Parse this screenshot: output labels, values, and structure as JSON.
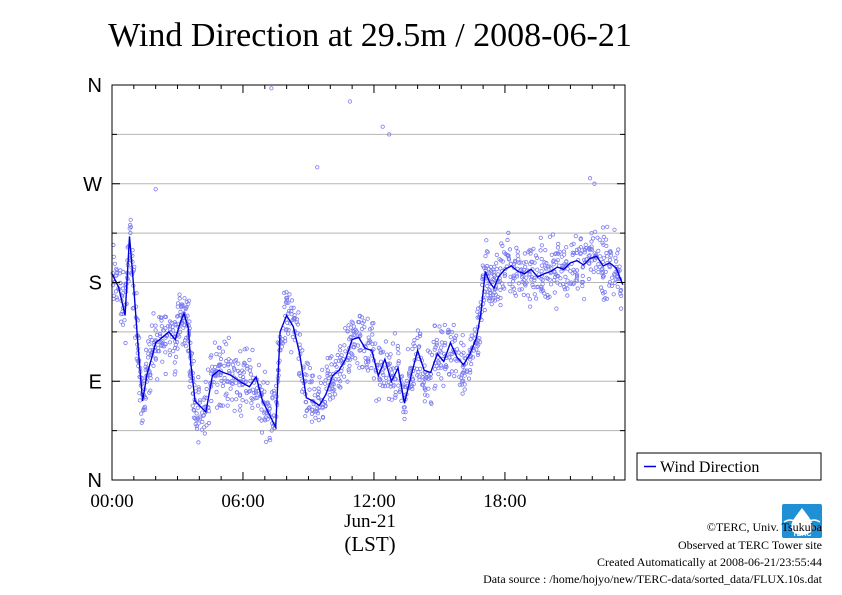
{
  "chart_data": {
    "type": "scatter",
    "title": "Wind Direction at 29.5m / 2008-06-21",
    "xlabel": "(LST)",
    "date_label": "Jun-21",
    "x_unit": "hours (LST)",
    "xlim": [
      0,
      23.5
    ],
    "x_ticks": [
      {
        "value": 0,
        "label": "00:00"
      },
      {
        "value": 6,
        "label": "06:00"
      },
      {
        "value": 12,
        "label": "12:00"
      },
      {
        "value": 18,
        "label": "18:00"
      }
    ],
    "y_unit": "degrees",
    "ylim": [
      0,
      360
    ],
    "y_ticks": [
      {
        "value": 0,
        "label": "N"
      },
      {
        "value": 90,
        "label": "E"
      },
      {
        "value": 180,
        "label": "S"
      },
      {
        "value": 270,
        "label": "W"
      },
      {
        "value": 360,
        "label": "N"
      }
    ],
    "y_minor_gridlines": [
      45,
      135,
      225,
      315
    ],
    "grid": true,
    "legend": {
      "position": "bottom-right, outside plot",
      "entries": [
        "Wind Direction"
      ]
    },
    "series": [
      {
        "name": "Wind Direction",
        "style": "line with scatter of 10-second samples",
        "color": "#0000dd",
        "scatter_color": "#7b7bf0",
        "x": [
          0.0,
          0.3,
          0.6,
          0.8,
          1.0,
          1.2,
          1.4,
          1.6,
          1.8,
          2.0,
          2.3,
          2.6,
          2.9,
          3.1,
          3.3,
          3.5,
          3.6,
          3.8,
          4.0,
          4.3,
          4.6,
          4.9,
          5.1,
          5.4,
          5.7,
          6.0,
          6.3,
          6.6,
          6.9,
          7.2,
          7.5,
          7.7,
          8.0,
          8.3,
          8.6,
          8.9,
          9.2,
          9.5,
          9.8,
          10.1,
          10.4,
          10.7,
          11.0,
          11.3,
          11.6,
          11.9,
          12.2,
          12.5,
          12.8,
          13.1,
          13.4,
          13.7,
          14.0,
          14.3,
          14.6,
          14.9,
          15.2,
          15.5,
          15.8,
          16.1,
          16.4,
          16.7,
          16.9,
          17.1,
          17.3,
          17.5,
          17.7,
          18.0,
          18.3,
          18.6,
          18.9,
          19.2,
          19.5,
          19.8,
          20.1,
          20.4,
          20.7,
          21.0,
          21.3,
          21.6,
          21.9,
          22.2,
          22.5,
          22.8,
          23.1,
          23.4
        ],
        "y": [
          188,
          176,
          150,
          222,
          175,
          120,
          72,
          96,
          110,
          125,
          130,
          135,
          128,
          142,
          152,
          138,
          108,
          72,
          68,
          62,
          95,
          100,
          98,
          96,
          92,
          88,
          85,
          94,
          72,
          60,
          48,
          135,
          150,
          140,
          115,
          75,
          72,
          68,
          78,
          95,
          100,
          110,
          128,
          130,
          120,
          118,
          95,
          110,
          90,
          102,
          70,
          95,
          118,
          100,
          98,
          115,
          108,
          125,
          112,
          105,
          115,
          130,
          152,
          190,
          180,
          175,
          185,
          192,
          195,
          190,
          188,
          192,
          185,
          188,
          190,
          194,
          192,
          198,
          200,
          196,
          202,
          204,
          195,
          198,
          193,
          178
        ],
        "samples_per_segment": 18,
        "sample_spread_deg": 22
      }
    ],
    "outliers": [
      {
        "x": 2.0,
        "y": 265
      },
      {
        "x": 7.3,
        "y": 357
      },
      {
        "x": 9.4,
        "y": 285
      },
      {
        "x": 10.9,
        "y": 345
      },
      {
        "x": 12.4,
        "y": 322
      },
      {
        "x": 12.7,
        "y": 315
      },
      {
        "x": 21.9,
        "y": 275
      },
      {
        "x": 22.1,
        "y": 270
      }
    ]
  },
  "credits": {
    "org": "©TERC, Univ. Tsukuba",
    "site": "Observed at TERC Tower site",
    "created": "Created Automatically at 2008-06-21/23:55:44",
    "source": "Data source : /home/hojyo/new/TERC-data/sorted_data/FLUX.10s.dat",
    "logo_text": "TERC"
  }
}
